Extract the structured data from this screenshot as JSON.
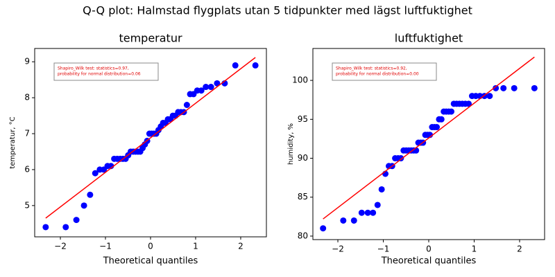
{
  "title": "Q-Q plot: Halmstad flygplats utan 5 tidpunkter med lägst luftfuktighet",
  "chart_data": [
    {
      "type": "scatter",
      "title": "temperatur",
      "xlabel": "Theoretical quantiles",
      "ylabel": "temperatur, °C",
      "annotation": [
        "Shapiro_Wilk test: statistics=0.97,",
        "probability for normal distribution=0.06"
      ],
      "x": [
        -2.326,
        -1.881,
        -1.645,
        -1.476,
        -1.341,
        -1.227,
        -1.126,
        -1.036,
        -0.954,
        -0.878,
        -0.806,
        -0.739,
        -0.674,
        -0.613,
        -0.553,
        -0.496,
        -0.44,
        -0.385,
        -0.332,
        -0.279,
        -0.228,
        -0.176,
        -0.126,
        -0.075,
        -0.025,
        0.025,
        0.075,
        0.126,
        0.176,
        0.228,
        0.279,
        0.332,
        0.385,
        0.44,
        0.496,
        0.553,
        0.613,
        0.674,
        0.739,
        0.806,
        0.878,
        0.954,
        1.036,
        1.126,
        1.227,
        1.341,
        1.476,
        1.645,
        1.881,
        2.326
      ],
      "values": [
        4.4,
        4.4,
        4.6,
        5.0,
        5.3,
        5.9,
        6.0,
        6.0,
        6.1,
        6.1,
        6.3,
        6.3,
        6.3,
        6.3,
        6.3,
        6.4,
        6.5,
        6.5,
        6.5,
        6.5,
        6.5,
        6.6,
        6.7,
        6.8,
        7.0,
        7.0,
        7.0,
        7.0,
        7.1,
        7.2,
        7.3,
        7.3,
        7.4,
        7.4,
        7.5,
        7.5,
        7.6,
        7.6,
        7.6,
        7.8,
        8.1,
        8.1,
        8.2,
        8.2,
        8.3,
        8.3,
        8.4,
        8.4,
        8.9,
        8.9
      ],
      "color": "#0000ff",
      "fit_line": {
        "x": [
          -2.326,
          2.326
        ],
        "y": [
          4.65,
          9.12
        ],
        "color": "#ff0000"
      },
      "xlim": [
        -2.57,
        2.57
      ],
      "ylim": [
        4.13,
        9.37
      ],
      "xticks": [
        {
          "value": -2,
          "label": "−2"
        },
        {
          "value": -1,
          "label": "−1"
        },
        0,
        1,
        2
      ],
      "yticks": [
        5,
        6,
        7,
        8,
        9
      ]
    },
    {
      "type": "scatter",
      "title": "luftfuktighet",
      "xlabel": "Theoretical quantiles",
      "ylabel": "humidity, %",
      "annotation": [
        "Shapiro_Wilk test: statistics=0.92,",
        "probability for normal distribution=0.00"
      ],
      "x": [
        -2.326,
        -1.881,
        -1.645,
        -1.476,
        -1.341,
        -1.227,
        -1.126,
        -1.036,
        -0.954,
        -0.878,
        -0.806,
        -0.739,
        -0.674,
        -0.613,
        -0.553,
        -0.496,
        -0.44,
        -0.385,
        -0.332,
        -0.279,
        -0.228,
        -0.176,
        -0.126,
        -0.075,
        -0.025,
        0.025,
        0.075,
        0.126,
        0.176,
        0.228,
        0.279,
        0.332,
        0.385,
        0.44,
        0.496,
        0.553,
        0.613,
        0.674,
        0.739,
        0.806,
        0.878,
        0.954,
        1.036,
        1.126,
        1.227,
        1.341,
        1.476,
        1.645,
        1.881,
        2.326
      ],
      "values": [
        81,
        82,
        82,
        83,
        83,
        83,
        84,
        86,
        88,
        89,
        89,
        90,
        90,
        90,
        91,
        91,
        91,
        91,
        91,
        91,
        92,
        92,
        92,
        93,
        93,
        93,
        94,
        94,
        94,
        95,
        95,
        96,
        96,
        96,
        96,
        97,
        97,
        97,
        97,
        97,
        97,
        98,
        98,
        98,
        98,
        98,
        99,
        99,
        99,
        99
      ],
      "color": "#0000ff",
      "fit_line": {
        "x": [
          -2.326,
          2.326
        ],
        "y": [
          82.2,
          103.0
        ],
        "color": "#ff0000"
      },
      "xlim": [
        -2.55,
        2.55
      ],
      "ylim": [
        79.55,
        104.1
      ],
      "xticks": [
        {
          "value": -2,
          "label": "−2"
        },
        {
          "value": -1,
          "label": "−1"
        },
        0,
        1,
        2
      ],
      "yticks": [
        80,
        85,
        90,
        95,
        100
      ]
    }
  ]
}
